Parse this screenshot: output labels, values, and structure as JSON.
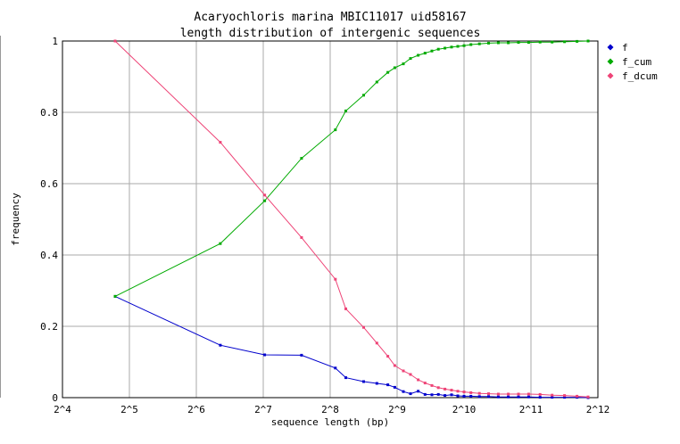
{
  "chart_data": {
    "type": "line",
    "title": "Acaryochloris marina MBIC11017 uid58167",
    "subtitle": "length distribution of intergenic sequences",
    "xlabel": "sequence length (bp)",
    "ylabel": "frequency",
    "x_scale": "log2",
    "xlim": [
      16,
      4096
    ],
    "ylim": [
      0,
      1
    ],
    "grid": true,
    "legend_position": "top-right",
    "x_ticks": [
      {
        "value": 16,
        "label": "2^4"
      },
      {
        "value": 32,
        "label": "2^5"
      },
      {
        "value": 64,
        "label": "2^6"
      },
      {
        "value": 128,
        "label": "2^7"
      },
      {
        "value": 256,
        "label": "2^8"
      },
      {
        "value": 512,
        "label": "2^9"
      },
      {
        "value": 1024,
        "label": "2^10"
      },
      {
        "value": 2048,
        "label": "2^11"
      },
      {
        "value": 4096,
        "label": "2^12"
      }
    ],
    "y_ticks": [
      {
        "value": 0,
        "label": "0"
      },
      {
        "value": 0.2,
        "label": "0.2"
      },
      {
        "value": 0.4,
        "label": "0.4"
      },
      {
        "value": 0.6,
        "label": "0.6"
      },
      {
        "value": 0.8,
        "label": "0.8"
      },
      {
        "value": 1,
        "label": "1"
      }
    ],
    "series": [
      {
        "name": "f",
        "color": "#0000cc",
        "points": [
          [
            27.6,
            0.284
          ],
          [
            82.1,
            0.147
          ],
          [
            129.9,
            0.12
          ],
          [
            190.3,
            0.119
          ],
          [
            270.0,
            0.083
          ],
          [
            301.0,
            0.056
          ],
          [
            362.0,
            0.045
          ],
          [
            415.0,
            0.04
          ],
          [
            465.0,
            0.036
          ],
          [
            500.0,
            0.029
          ],
          [
            546.0,
            0.017
          ],
          [
            588.0,
            0.011
          ],
          [
            637.0,
            0.018
          ],
          [
            684.0,
            0.009
          ],
          [
            734.0,
            0.008
          ],
          [
            785.0,
            0.009
          ],
          [
            840.0,
            0.006
          ],
          [
            900.0,
            0.008
          ],
          [
            960.0,
            0.005
          ],
          [
            1024.0,
            0.004
          ],
          [
            1100.0,
            0.004
          ],
          [
            1200.0,
            0.003
          ],
          [
            1320.0,
            0.003
          ],
          [
            1460.0,
            0.002
          ],
          [
            1620.0,
            0.002
          ],
          [
            1800.0,
            0.002
          ],
          [
            2000.0,
            0.002
          ],
          [
            2250.0,
            0.001
          ],
          [
            2550.0,
            0.001
          ],
          [
            2900.0,
            0.001
          ],
          [
            3300.0,
            0.001
          ],
          [
            3700.0,
            0.0
          ]
        ]
      },
      {
        "name": "f_cum",
        "color": "#00aa00",
        "points": [
          [
            27.6,
            0.284
          ],
          [
            82.1,
            0.432
          ],
          [
            129.9,
            0.552
          ],
          [
            190.3,
            0.671
          ],
          [
            270.0,
            0.751
          ],
          [
            301.0,
            0.804
          ],
          [
            362.0,
            0.848
          ],
          [
            415.0,
            0.885
          ],
          [
            465.0,
            0.912
          ],
          [
            500.0,
            0.925
          ],
          [
            546.0,
            0.936
          ],
          [
            588.0,
            0.951
          ],
          [
            637.0,
            0.96
          ],
          [
            684.0,
            0.966
          ],
          [
            734.0,
            0.972
          ],
          [
            785.0,
            0.977
          ],
          [
            840.0,
            0.98
          ],
          [
            900.0,
            0.983
          ],
          [
            960.0,
            0.985
          ],
          [
            1024.0,
            0.987
          ],
          [
            1100.0,
            0.99
          ],
          [
            1200.0,
            0.992
          ],
          [
            1320.0,
            0.994
          ],
          [
            1460.0,
            0.995
          ],
          [
            1620.0,
            0.995
          ],
          [
            1800.0,
            0.996
          ],
          [
            2000.0,
            0.996
          ],
          [
            2250.0,
            0.997
          ],
          [
            2550.0,
            0.997
          ],
          [
            2900.0,
            0.998
          ],
          [
            3300.0,
            0.999
          ],
          [
            3700.0,
            1.0
          ]
        ]
      },
      {
        "name": "f_dcum",
        "color": "#ee4477",
        "points": [
          [
            27.6,
            1.0
          ],
          [
            82.1,
            0.716
          ],
          [
            129.9,
            0.568
          ],
          [
            190.3,
            0.449
          ],
          [
            270.0,
            0.332
          ],
          [
            301.0,
            0.249
          ],
          [
            362.0,
            0.197
          ],
          [
            415.0,
            0.153
          ],
          [
            465.0,
            0.116
          ],
          [
            500.0,
            0.09
          ],
          [
            546.0,
            0.075
          ],
          [
            588.0,
            0.065
          ],
          [
            637.0,
            0.05
          ],
          [
            684.0,
            0.041
          ],
          [
            734.0,
            0.034
          ],
          [
            785.0,
            0.028
          ],
          [
            840.0,
            0.024
          ],
          [
            900.0,
            0.021
          ],
          [
            960.0,
            0.018
          ],
          [
            1024.0,
            0.016
          ],
          [
            1100.0,
            0.014
          ],
          [
            1200.0,
            0.012
          ],
          [
            1320.0,
            0.011
          ],
          [
            1460.0,
            0.01
          ],
          [
            1620.0,
            0.01
          ],
          [
            1800.0,
            0.01
          ],
          [
            2000.0,
            0.01
          ],
          [
            2250.0,
            0.009
          ],
          [
            2550.0,
            0.007
          ],
          [
            2900.0,
            0.006
          ],
          [
            3300.0,
            0.004
          ],
          [
            3700.0,
            0.002
          ]
        ]
      }
    ]
  }
}
